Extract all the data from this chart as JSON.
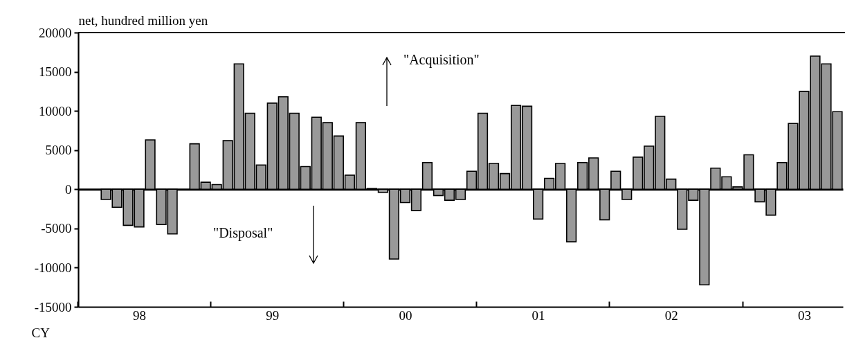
{
  "chart_data": {
    "type": "bar",
    "ylabel": "net, hundred million yen",
    "xlabel": "CY",
    "categories": [
      null,
      null,
      null,
      null,
      null,
      "98",
      null,
      null,
      null,
      null,
      null,
      null,
      null,
      null,
      null,
      null,
      null,
      "99",
      null,
      null,
      null,
      null,
      null,
      null,
      null,
      null,
      null,
      null,
      null,
      "00",
      null,
      null,
      null,
      null,
      null,
      null,
      null,
      null,
      null,
      null,
      null,
      "01",
      null,
      null,
      null,
      null,
      null,
      null,
      null,
      null,
      null,
      null,
      null,
      "02",
      null,
      null,
      null,
      null,
      null,
      null,
      null,
      null,
      null,
      null,
      null,
      "03",
      null,
      null,
      null
    ],
    "values": [
      null,
      null,
      -1300,
      -2300,
      -4600,
      -4800,
      6300,
      -4500,
      -5700,
      null,
      5800,
      900,
      600,
      6200,
      16000,
      9700,
      3100,
      11000,
      11800,
      9700,
      2900,
      9200,
      8500,
      6800,
      1800,
      8500,
      100,
      -400,
      -8900,
      -1700,
      -2700,
      3400,
      -800,
      -1400,
      -1300,
      2300,
      9700,
      3300,
      2000,
      10700,
      10600,
      -3800,
      1400,
      3300,
      -6700,
      3400,
      4000,
      -3900,
      2300,
      -1300,
      4100,
      5500,
      9300,
      1300,
      -5100,
      -1400,
      -12200,
      2700,
      1600,
      300,
      4400,
      -1600,
      -3300,
      3400,
      8400,
      12500,
      17000,
      16000,
      9900
    ],
    "color": "#999999",
    "ylim": [
      -15000,
      20000
    ],
    "yticks": [
      -15000,
      -10000,
      -5000,
      0,
      5000,
      10000,
      15000,
      20000
    ],
    "annotations": [
      "\"Acquisition\"",
      "\"Disposal\""
    ]
  }
}
